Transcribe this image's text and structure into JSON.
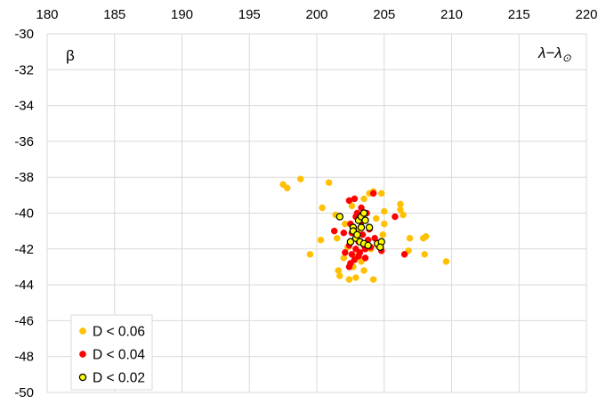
{
  "chart_data": {
    "type": "scatter",
    "xlabel": "λ−λ",
    "xlabel_subscript": "⊙",
    "ylabel": "β",
    "xlim": [
      180,
      220
    ],
    "ylim": [
      -50,
      -30
    ],
    "x_ticks": [
      180,
      185,
      190,
      195,
      200,
      205,
      210,
      215,
      220
    ],
    "y_ticks": [
      -30,
      -32,
      -34,
      -36,
      -38,
      -40,
      -42,
      -44,
      -46,
      -48,
      -50
    ],
    "x_axis_position": "top",
    "grid": true,
    "legend_position": "bottom-left",
    "series": [
      {
        "name": "D < 0.06",
        "color": "#FFC000",
        "edge": "#FFC000",
        "points": [
          [
            197.5,
            -38.4
          ],
          [
            197.8,
            -38.6
          ],
          [
            198.8,
            -38.1
          ],
          [
            200.9,
            -38.3
          ],
          [
            200.4,
            -39.7
          ],
          [
            201.4,
            -40.1
          ],
          [
            200.3,
            -41.5
          ],
          [
            201.5,
            -41.4
          ],
          [
            199.5,
            -42.3
          ],
          [
            202.0,
            -42.5
          ],
          [
            201.6,
            -43.2
          ],
          [
            201.7,
            -43.5
          ],
          [
            202.4,
            -43.7
          ],
          [
            202.9,
            -43.6
          ],
          [
            203.5,
            -43.2
          ],
          [
            204.2,
            -43.7
          ],
          [
            203.5,
            -39.2
          ],
          [
            203.9,
            -38.9
          ],
          [
            204.2,
            -38.8
          ],
          [
            204.8,
            -38.9
          ],
          [
            205.0,
            -39.9
          ],
          [
            205.0,
            -40.6
          ],
          [
            204.9,
            -41.2
          ],
          [
            204.5,
            -41.8
          ],
          [
            206.2,
            -39.5
          ],
          [
            206.2,
            -39.8
          ],
          [
            206.4,
            -40.1
          ],
          [
            206.9,
            -41.4
          ],
          [
            206.8,
            -42.1
          ],
          [
            207.9,
            -41.4
          ],
          [
            208.1,
            -41.3
          ],
          [
            208.0,
            -42.3
          ],
          [
            209.6,
            -42.7
          ],
          [
            202.6,
            -39.6
          ],
          [
            203.1,
            -40.9
          ],
          [
            202.3,
            -41.9
          ],
          [
            203.0,
            -42.4
          ],
          [
            204.0,
            -42.0
          ],
          [
            202.7,
            -43.0
          ],
          [
            203.3,
            -42.7
          ],
          [
            204.4,
            -40.3
          ],
          [
            202.1,
            -40.6
          ]
        ]
      },
      {
        "name": "D < 0.04",
        "color": "#FF0000",
        "edge": "#FF0000",
        "points": [
          [
            202.4,
            -39.3
          ],
          [
            202.8,
            -39.2
          ],
          [
            203.3,
            -39.7
          ],
          [
            202.9,
            -40.2
          ],
          [
            203.7,
            -40.0
          ],
          [
            204.2,
            -38.9
          ],
          [
            202.5,
            -40.6
          ],
          [
            202.6,
            -41.1
          ],
          [
            203.1,
            -41.6
          ],
          [
            203.4,
            -41.2
          ],
          [
            203.8,
            -41.5
          ],
          [
            202.4,
            -41.8
          ],
          [
            202.9,
            -42.0
          ],
          [
            203.2,
            -42.2
          ],
          [
            203.6,
            -42.0
          ],
          [
            202.8,
            -42.6
          ],
          [
            203.1,
            -42.4
          ],
          [
            202.1,
            -42.2
          ],
          [
            201.3,
            -41.0
          ],
          [
            202.0,
            -41.1
          ],
          [
            203.5,
            -41.8
          ],
          [
            204.0,
            -41.9
          ],
          [
            204.5,
            -41.7
          ],
          [
            204.8,
            -42.1
          ],
          [
            205.8,
            -40.2
          ],
          [
            206.5,
            -42.3
          ],
          [
            202.5,
            -42.8
          ],
          [
            202.4,
            -43.0
          ],
          [
            203.3,
            -40.5
          ],
          [
            203.9,
            -40.9
          ],
          [
            202.9,
            -41.4
          ],
          [
            203.6,
            -42.5
          ],
          [
            202.6,
            -42.3
          ],
          [
            204.3,
            -41.4
          ],
          [
            203.0,
            -40.0
          ]
        ]
      },
      {
        "name": "D < 0.02",
        "color": "#FFFF00",
        "edge": "#000000",
        "points": [
          [
            201.7,
            -40.2
          ],
          [
            202.7,
            -40.8
          ],
          [
            203.1,
            -40.4
          ],
          [
            203.3,
            -40.2
          ],
          [
            203.5,
            -40.0
          ],
          [
            203.6,
            -40.4
          ],
          [
            203.9,
            -40.8
          ],
          [
            203.3,
            -40.8
          ],
          [
            202.7,
            -41.0
          ],
          [
            202.9,
            -41.4
          ],
          [
            203.2,
            -41.6
          ],
          [
            203.5,
            -41.7
          ],
          [
            203.8,
            -41.8
          ],
          [
            202.5,
            -41.6
          ],
          [
            204.5,
            -41.7
          ],
          [
            204.8,
            -41.6
          ],
          [
            204.7,
            -41.9
          ],
          [
            203.0,
            -41.2
          ]
        ]
      }
    ]
  }
}
